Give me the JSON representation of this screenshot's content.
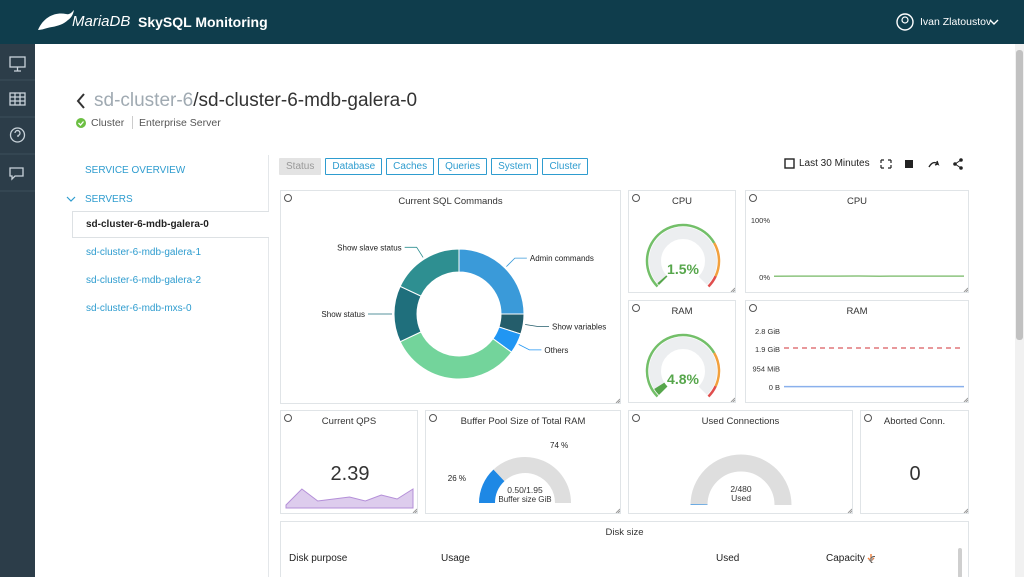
{
  "header": {
    "brand": "MariaDB",
    "product": "SkySQL Monitoring",
    "user": "Ivan Zlatoustov"
  },
  "breadcrumb": {
    "parent": "sd-cluster-6",
    "current": "/sd-cluster-6-mdb-galera-0",
    "kind": "Cluster",
    "edition": "Enterprise Server"
  },
  "sidebar": {
    "overview": "SERVICE OVERVIEW",
    "servers_label": "SERVERS",
    "servers": [
      "sd-cluster-6-mdb-galera-0",
      "sd-cluster-6-mdb-galera-1",
      "sd-cluster-6-mdb-galera-2",
      "sd-cluster-6-mdb-mxs-0"
    ]
  },
  "tabs": [
    "Status",
    "Database",
    "Caches",
    "Queries",
    "System",
    "Cluster"
  ],
  "toolbar": {
    "time_range": "Last 30 Minutes"
  },
  "panels": {
    "sql_commands": {
      "type": "pie",
      "title": "Current SQL Commands",
      "labels": [
        "Admin commands",
        "Show variables",
        "Others",
        null,
        "Show status",
        "Show slave status"
      ],
      "values": [
        25,
        5,
        5,
        33,
        14,
        18
      ],
      "colors": [
        "#3a9ad9",
        "#245d6b",
        "#2196f3",
        "#73d49b",
        "#1f6f7c",
        "#2e8f91"
      ]
    },
    "cpu_gauge": {
      "type": "gauge",
      "title": "CPU",
      "value": 1.5,
      "value_label": "1.5%",
      "ylim": [
        0,
        100
      ],
      "color": "#56a64b"
    },
    "cpu_chart": {
      "type": "line",
      "title": "CPU",
      "ylim": [
        0,
        100
      ],
      "yticks": [
        {
          "value": 0,
          "label": "0%"
        },
        {
          "value": 100,
          "label": "100%"
        }
      ],
      "series": [
        {
          "color": "#8cc47e",
          "values": [
            1.4,
            1.6,
            1.5,
            1.5,
            1.7,
            1.4,
            1.5,
            1.6,
            1.5,
            1.5
          ]
        }
      ]
    },
    "ram_gauge": {
      "type": "gauge",
      "title": "RAM",
      "value": 4.8,
      "value_label": "4.8%",
      "ylim": [
        0,
        100
      ],
      "color": "#56a64b"
    },
    "ram_chart": {
      "type": "line",
      "title": "RAM",
      "ylim": [
        0,
        2.8
      ],
      "yticks": [
        {
          "value": 0,
          "label": "0 B"
        },
        {
          "value": 0.932,
          "label": "954 MiB"
        },
        {
          "value": 1.9,
          "label": "1.9 GiB"
        },
        {
          "value": 2.8,
          "label": "2.8 GiB"
        }
      ],
      "series": [
        {
          "color": "#e0767a",
          "dashed": true,
          "values": [
            1.95,
            1.95,
            1.95,
            1.95,
            1.95,
            1.95,
            1.95,
            1.95
          ]
        },
        {
          "color": "#8ab0ec",
          "values": [
            0.02,
            0.02,
            0.02,
            0.02,
            0.02,
            0.02,
            0.02,
            0.02
          ]
        }
      ]
    },
    "qps": {
      "type": "stat",
      "title": "Current QPS",
      "value": 2.39,
      "color": "#b48fd8",
      "history": [
        2.2,
        2.6,
        2.3,
        2.35,
        2.4,
        2.3,
        2.45,
        2.35,
        2.6
      ]
    },
    "buffer_pool": {
      "type": "gauge",
      "title": "Buffer Pool Size of Total RAM",
      "values": [
        26,
        74
      ],
      "value_labels": [
        "26 %",
        "74 %"
      ],
      "colors": [
        "#1e88e5",
        "#dedede"
      ],
      "center_label": "0.50/1.95",
      "caption": "Buffer size GiB"
    },
    "connections": {
      "type": "gauge",
      "title": "Used Connections",
      "value": 2,
      "max": 480,
      "value_label": "2/480",
      "caption": "Used",
      "color": "#1e88e5"
    },
    "aborted": {
      "type": "stat",
      "title": "Aborted Conn.",
      "value": 0
    },
    "disk": {
      "type": "table",
      "title": "Disk size",
      "columns": [
        "Disk purpose",
        "Usage",
        "Used",
        "Capacity"
      ]
    }
  }
}
